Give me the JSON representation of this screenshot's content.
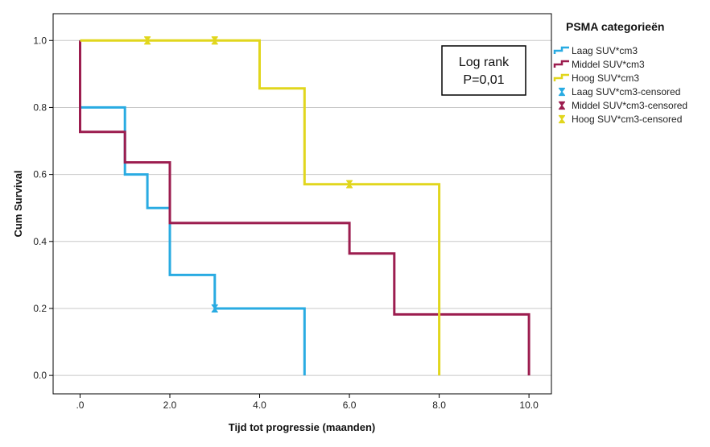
{
  "chart_data": {
    "type": "line",
    "step": true,
    "xlabel": "Tijd tot progressie (maanden)",
    "ylabel": "Cum Survival",
    "xlim": [
      -0.6,
      10.5
    ],
    "ylim": [
      -0.055,
      1.08
    ],
    "xticks": [
      {
        "value": 0,
        "label": ".0"
      },
      {
        "value": 2,
        "label": "2.0"
      },
      {
        "value": 4,
        "label": "4.0"
      },
      {
        "value": 6,
        "label": "6.0"
      },
      {
        "value": 8,
        "label": "8.0"
      },
      {
        "value": 10,
        "label": "10.0"
      }
    ],
    "yticks": [
      {
        "value": 0,
        "label": "0.0"
      },
      {
        "value": 0.2,
        "label": "0.2"
      },
      {
        "value": 0.4,
        "label": "0.4"
      },
      {
        "value": 0.6,
        "label": "0.6"
      },
      {
        "value": 0.8,
        "label": "0.8"
      },
      {
        "value": 1.0,
        "label": "1.0"
      }
    ],
    "grid": "horizontal",
    "legend": {
      "title": "PSMA categorieën",
      "placement": "right"
    },
    "annotation": {
      "lines": [
        "Log rank",
        "P=0,01"
      ],
      "placement": "top-right"
    },
    "series": [
      {
        "name": "Laag SUV*cm3",
        "censored_name": "Laag SUV*cm3-censored",
        "color": "#29abe2",
        "points": [
          [
            0,
            1.0
          ],
          [
            0,
            0.8
          ],
          [
            1,
            0.8
          ],
          [
            1,
            0.6
          ],
          [
            1.5,
            0.6
          ],
          [
            1.5,
            0.5
          ],
          [
            2,
            0.5
          ],
          [
            2,
            0.3
          ],
          [
            3,
            0.3
          ],
          [
            3,
            0.2
          ],
          [
            5,
            0.2
          ],
          [
            5,
            0.0
          ]
        ],
        "censored": [
          [
            3,
            0.2
          ]
        ]
      },
      {
        "name": "Middel SUV*cm3",
        "censored_name": "Middel SUV*cm3-censored",
        "color": "#9c1d4f",
        "points": [
          [
            0,
            1.0
          ],
          [
            0,
            0.727
          ],
          [
            1,
            0.727
          ],
          [
            1,
            0.636
          ],
          [
            2,
            0.636
          ],
          [
            2,
            0.455
          ],
          [
            6,
            0.455
          ],
          [
            6,
            0.364
          ],
          [
            7,
            0.364
          ],
          [
            7,
            0.182
          ],
          [
            10,
            0.182
          ],
          [
            10,
            0.0
          ]
        ],
        "censored": []
      },
      {
        "name": "Hoog SUV*cm3",
        "censored_name": "Hoog SUV*cm3-censored",
        "color": "#e1d61d",
        "points": [
          [
            0,
            1.0
          ],
          [
            4,
            1.0
          ],
          [
            4,
            0.857
          ],
          [
            5,
            0.857
          ],
          [
            5,
            0.571
          ],
          [
            8,
            0.571
          ],
          [
            8,
            0.0
          ]
        ],
        "censored": [
          [
            1.5,
            1.0
          ],
          [
            3,
            1.0
          ],
          [
            6,
            0.571
          ]
        ]
      }
    ]
  }
}
